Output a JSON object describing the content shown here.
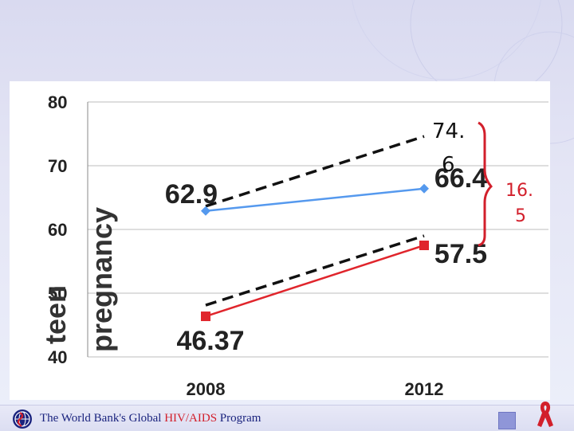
{
  "chart_data": {
    "type": "line",
    "categories": [
      "2008",
      "2012"
    ],
    "series": [
      {
        "values": [
          62.9,
          66.4
        ],
        "color": "#5599ee"
      },
      {
        "values": [
          46.37,
          57.5
        ],
        "color": "#e0252c"
      }
    ],
    "y_ticks": [
      "80",
      "70",
      "60",
      "50",
      "40"
    ],
    "ylim": [
      40,
      80
    ],
    "ylabel_line1": "teen",
    "ylabel_line2": "pregnancy",
    "point_labels": [
      "62.9",
      "66.4",
      "46.37",
      "57.5"
    ],
    "annotation_top": [
      "74.",
      "6"
    ],
    "annotation_right": [
      "16.",
      "5"
    ],
    "grid": true
  },
  "footer": {
    "text_before": "The World Bank's Global ",
    "text_highlight": "HIV/AIDS",
    "text_after": " Program"
  },
  "colors": {
    "blue_series": "#5599ee",
    "red_series": "#e0252c",
    "annotation": "#d21f2b",
    "footer_text": "#1a237e"
  }
}
